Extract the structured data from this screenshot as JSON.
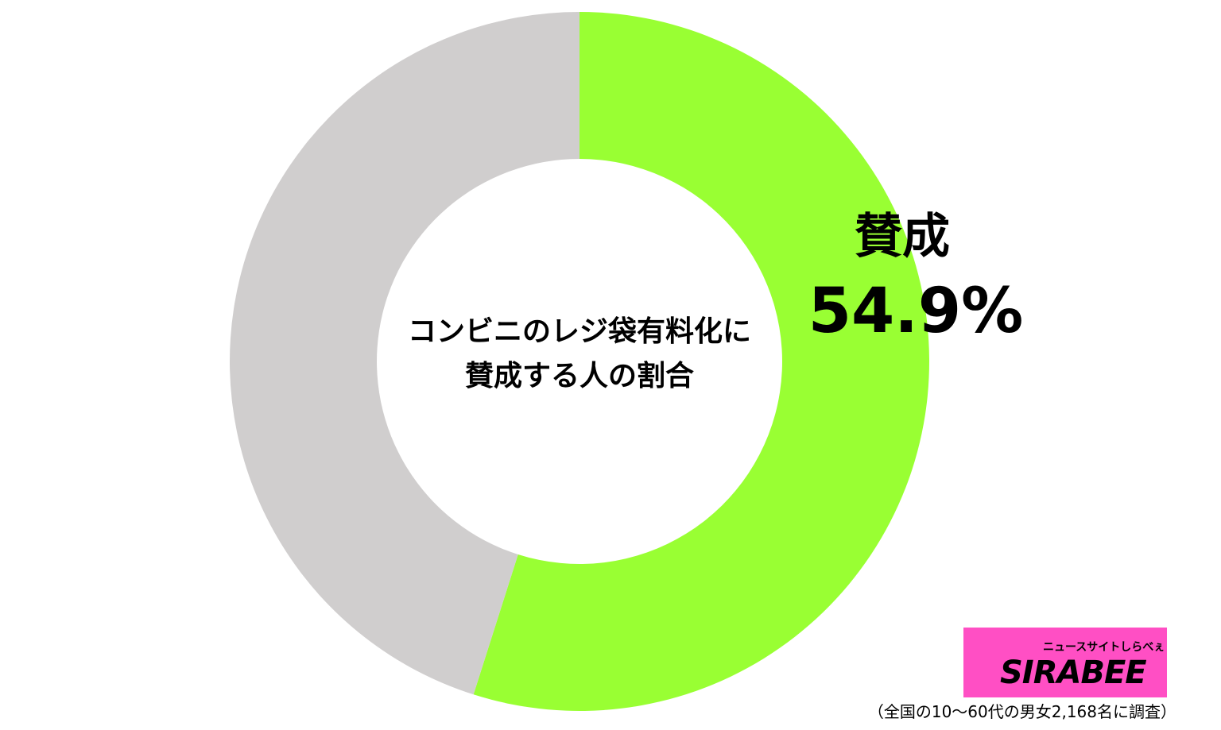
{
  "chart_data": {
    "type": "donut",
    "title": "コンビニのレジ袋有料化に\n賛成する人の割合",
    "categories": [
      "賛成",
      null
    ],
    "values": [
      54.9,
      45.1
    ],
    "value_labels": [
      "54.9%",
      null
    ],
    "colors": [
      "#99ff33",
      "#d0cece"
    ],
    "start_angle": 0,
    "direction": "clockwise"
  },
  "note": "（全国の10〜60代の男女2,168名に調査）",
  "logo": {
    "subtitle": "ニュースサイトしらべぇ",
    "text": "SIRABEE"
  }
}
